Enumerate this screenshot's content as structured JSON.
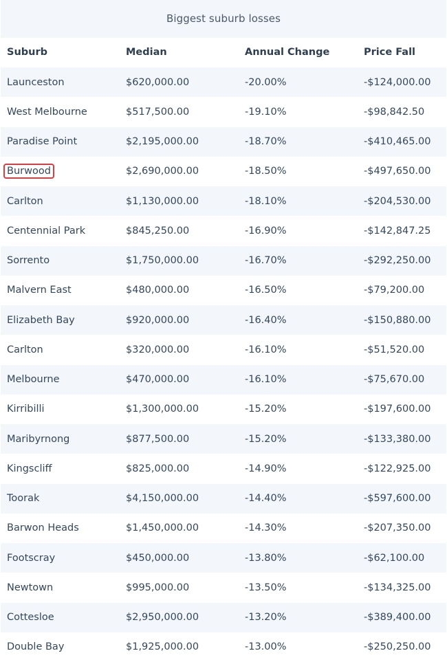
{
  "table": {
    "caption": "Biggest suburb losses",
    "headers": [
      "Suburb",
      "Median",
      "Annual Change",
      "Price Fall"
    ],
    "highlight_color": "#e0393e",
    "highlighted_suburb": "Burwood",
    "rows": [
      [
        "Launceston",
        "$620,000.00",
        "-20.00%",
        "-$124,000.00"
      ],
      [
        "West Melbourne",
        "$517,500.00",
        "-19.10%",
        "-$98,842.50"
      ],
      [
        "Paradise Point",
        "$2,195,000.00",
        "-18.70%",
        "-$410,465.00"
      ],
      [
        "Burwood",
        "$2,690,000.00",
        "-18.50%",
        "-$497,650.00"
      ],
      [
        "Carlton",
        "$1,130,000.00",
        "-18.10%",
        "-$204,530.00"
      ],
      [
        "Centennial Park",
        "$845,250.00",
        "-16.90%",
        "-$142,847.25"
      ],
      [
        "Sorrento",
        "$1,750,000.00",
        "-16.70%",
        "-$292,250.00"
      ],
      [
        "Malvern East",
        "$480,000.00",
        "-16.50%",
        "-$79,200.00"
      ],
      [
        "Elizabeth Bay",
        "$920,000.00",
        "-16.40%",
        "-$150,880.00"
      ],
      [
        "Carlton",
        "$320,000.00",
        "-16.10%",
        "-$51,520.00"
      ],
      [
        "Melbourne",
        "$470,000.00",
        "-16.10%",
        "-$75,670.00"
      ],
      [
        "Kirribilli",
        "$1,300,000.00",
        "-15.20%",
        "-$197,600.00"
      ],
      [
        "Maribyrnong",
        "$877,500.00",
        "-15.20%",
        "-$133,380.00"
      ],
      [
        "Kingscliff",
        "$825,000.00",
        "-14.90%",
        "-$122,925.00"
      ],
      [
        "Toorak",
        "$4,150,000.00",
        "-14.40%",
        "-$597,600.00"
      ],
      [
        "Barwon Heads",
        "$1,450,000.00",
        "-14.30%",
        "-$207,350.00"
      ],
      [
        "Footscray",
        "$450,000.00",
        "-13.80%",
        "-$62,100.00"
      ],
      [
        "Newtown",
        "$995,000.00",
        "-13.50%",
        "-$134,325.00"
      ],
      [
        "Cottesloe",
        "$2,950,000.00",
        "-13.20%",
        "-$389,400.00"
      ],
      [
        "Double Bay",
        "$1,925,000.00",
        "-13.00%",
        "-$250,250.00"
      ]
    ]
  }
}
